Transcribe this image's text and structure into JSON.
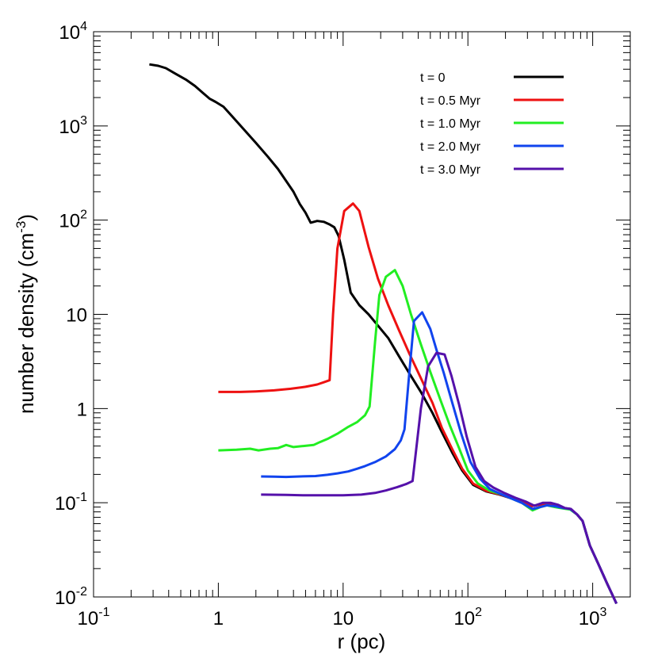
{
  "chart_data": {
    "type": "line",
    "xlabel": "r (pc)",
    "ylabel_main": "number density (cm",
    "ylabel_sup": "-3",
    "ylabel_close": ")",
    "xscale": "log",
    "yscale": "log",
    "xlim": [
      0.1,
      2000
    ],
    "ylim": [
      0.01,
      10000
    ],
    "grid": false,
    "legend_position": "top-right",
    "x_ticks": [
      {
        "value": 0.1,
        "base": "10",
        "sup": "-1"
      },
      {
        "value": 1,
        "base": "1",
        "sup": ""
      },
      {
        "value": 10,
        "base": "10",
        "sup": ""
      },
      {
        "value": 100,
        "base": "10",
        "sup": "2"
      },
      {
        "value": 1000,
        "base": "10",
        "sup": "3"
      }
    ],
    "y_ticks": [
      {
        "value": 0.01,
        "base": "10",
        "sup": "-2"
      },
      {
        "value": 0.1,
        "base": "10",
        "sup": "-1"
      },
      {
        "value": 1,
        "base": "1",
        "sup": ""
      },
      {
        "value": 10,
        "base": "10",
        "sup": ""
      },
      {
        "value": 100,
        "base": "10",
        "sup": "2"
      },
      {
        "value": 1000,
        "base": "10",
        "sup": "3"
      },
      {
        "value": 10000,
        "base": "10",
        "sup": "4"
      }
    ],
    "series": [
      {
        "name": "t = 0",
        "color": "#000000",
        "points": [
          [
            0.28,
            4500
          ],
          [
            0.33,
            4350
          ],
          [
            0.38,
            4100
          ],
          [
            0.45,
            3600
          ],
          [
            0.55,
            3100
          ],
          [
            0.65,
            2650
          ],
          [
            0.75,
            2250
          ],
          [
            0.85,
            1950
          ],
          [
            0.95,
            1800
          ],
          [
            1.1,
            1600
          ],
          [
            1.3,
            1250
          ],
          [
            1.6,
            920
          ],
          [
            2.0,
            660
          ],
          [
            2.5,
            470
          ],
          [
            3.0,
            350
          ],
          [
            3.5,
            260
          ],
          [
            4.0,
            200
          ],
          [
            4.5,
            148
          ],
          [
            5.0,
            120
          ],
          [
            5.5,
            94
          ],
          [
            6.2,
            98
          ],
          [
            7.0,
            96
          ],
          [
            7.8,
            90
          ],
          [
            8.5,
            84
          ],
          [
            9.2,
            68
          ],
          [
            10.2,
            38
          ],
          [
            11.5,
            17
          ],
          [
            13.5,
            12.5
          ],
          [
            16.0,
            10.0
          ],
          [
            19.0,
            7.6
          ],
          [
            23.0,
            5.6
          ],
          [
            28.0,
            3.6
          ],
          [
            34.0,
            2.35
          ],
          [
            42.0,
            1.5
          ],
          [
            52.0,
            0.9
          ],
          [
            62.0,
            0.56
          ],
          [
            75.0,
            0.34
          ],
          [
            90.0,
            0.22
          ],
          [
            110.0,
            0.155
          ],
          [
            140.0,
            0.132
          ],
          [
            180.0,
            0.122
          ],
          [
            220.0,
            0.112
          ],
          [
            270.0,
            0.102
          ],
          [
            320.0,
            0.092
          ],
          [
            370.0,
            0.095
          ],
          [
            430.0,
            0.097
          ],
          [
            500.0,
            0.095
          ],
          [
            580.0,
            0.088
          ],
          [
            660.0,
            0.086
          ],
          [
            750.0,
            0.075
          ],
          [
            830.0,
            0.064
          ],
          [
            950.0,
            0.035
          ],
          [
            1100.0,
            0.023
          ],
          [
            1300.0,
            0.014
          ],
          [
            1550.0,
            0.0085
          ]
        ]
      },
      {
        "name": "t = 0.5 Myr",
        "color": "#ee1111",
        "points": [
          [
            1.0,
            1.5
          ],
          [
            1.5,
            1.5
          ],
          [
            2.0,
            1.52
          ],
          [
            2.8,
            1.56
          ],
          [
            3.8,
            1.62
          ],
          [
            5.0,
            1.7
          ],
          [
            6.2,
            1.8
          ],
          [
            7.0,
            1.9
          ],
          [
            7.8,
            2.0
          ],
          [
            8.3,
            10.0
          ],
          [
            9.0,
            50.0
          ],
          [
            10.2,
            125.0
          ],
          [
            12.0,
            150.0
          ],
          [
            13.5,
            125.0
          ],
          [
            16.0,
            52.0
          ],
          [
            19.0,
            24.0
          ],
          [
            23.0,
            12.5
          ],
          [
            28.0,
            6.8
          ],
          [
            34.0,
            3.8
          ],
          [
            42.0,
            2.1
          ],
          [
            52.0,
            1.15
          ],
          [
            62.0,
            0.62
          ],
          [
            75.0,
            0.37
          ],
          [
            90.0,
            0.23
          ],
          [
            110.0,
            0.16
          ],
          [
            140.0,
            0.134
          ],
          [
            180.0,
            0.123
          ],
          [
            220.0,
            0.112
          ],
          [
            270.0,
            0.102
          ],
          [
            320.0,
            0.092
          ],
          [
            370.0,
            0.095
          ],
          [
            430.0,
            0.097
          ],
          [
            500.0,
            0.095
          ],
          [
            580.0,
            0.088
          ],
          [
            660.0,
            0.086
          ],
          [
            750.0,
            0.075
          ],
          [
            830.0,
            0.064
          ],
          [
            950.0,
            0.035
          ],
          [
            1100.0,
            0.023
          ],
          [
            1300.0,
            0.014
          ],
          [
            1550.0,
            0.0085
          ]
        ]
      },
      {
        "name": "t = 1.0 Myr",
        "color": "#22ee22",
        "points": [
          [
            1.0,
            0.36
          ],
          [
            1.4,
            0.365
          ],
          [
            1.8,
            0.375
          ],
          [
            2.1,
            0.36
          ],
          [
            2.6,
            0.375
          ],
          [
            3.0,
            0.38
          ],
          [
            3.5,
            0.41
          ],
          [
            4.0,
            0.39
          ],
          [
            4.8,
            0.4
          ],
          [
            5.8,
            0.41
          ],
          [
            6.5,
            0.44
          ],
          [
            7.6,
            0.48
          ],
          [
            9.0,
            0.54
          ],
          [
            11.0,
            0.64
          ],
          [
            13.0,
            0.72
          ],
          [
            15.0,
            0.85
          ],
          [
            16.3,
            1.05
          ],
          [
            18.0,
            5.0
          ],
          [
            19.5,
            16.0
          ],
          [
            22.0,
            25.0
          ],
          [
            26.0,
            29.5
          ],
          [
            30.0,
            20.0
          ],
          [
            35.0,
            10.0
          ],
          [
            42.0,
            4.8
          ],
          [
            50.0,
            2.45
          ],
          [
            60.0,
            1.25
          ],
          [
            72.0,
            0.65
          ],
          [
            85.0,
            0.38
          ],
          [
            100.0,
            0.22
          ],
          [
            120.0,
            0.16
          ],
          [
            150.0,
            0.134
          ],
          [
            185.0,
            0.123
          ],
          [
            220.0,
            0.112
          ],
          [
            270.0,
            0.1
          ],
          [
            330.0,
            0.083
          ],
          [
            380.0,
            0.09
          ],
          [
            430.0,
            0.094
          ],
          [
            500.0,
            0.09
          ],
          [
            580.0,
            0.087
          ],
          [
            660.0,
            0.085
          ],
          [
            750.0,
            0.075
          ],
          [
            830.0,
            0.064
          ],
          [
            950.0,
            0.035
          ],
          [
            1100.0,
            0.023
          ],
          [
            1300.0,
            0.014
          ],
          [
            1550.0,
            0.0085
          ]
        ]
      },
      {
        "name": "t = 2.0 Myr",
        "color": "#1144ee",
        "points": [
          [
            2.2,
            0.19
          ],
          [
            2.8,
            0.189
          ],
          [
            3.5,
            0.188
          ],
          [
            4.5,
            0.19
          ],
          [
            6.0,
            0.192
          ],
          [
            7.5,
            0.198
          ],
          [
            9.0,
            0.205
          ],
          [
            11.0,
            0.215
          ],
          [
            13.0,
            0.23
          ],
          [
            15.0,
            0.245
          ],
          [
            18.0,
            0.27
          ],
          [
            22.0,
            0.31
          ],
          [
            26.0,
            0.37
          ],
          [
            29.0,
            0.46
          ],
          [
            31.0,
            0.6
          ],
          [
            34.0,
            2.5
          ],
          [
            37.0,
            8.5
          ],
          [
            43.0,
            10.5
          ],
          [
            50.0,
            7.0
          ],
          [
            56.0,
            4.2
          ],
          [
            64.0,
            2.4
          ],
          [
            75.0,
            1.15
          ],
          [
            88.0,
            0.55
          ],
          [
            105.0,
            0.27
          ],
          [
            125.0,
            0.18
          ],
          [
            150.0,
            0.14
          ],
          [
            185.0,
            0.123
          ],
          [
            220.0,
            0.112
          ],
          [
            270.0,
            0.1
          ],
          [
            330.0,
            0.086
          ],
          [
            380.0,
            0.09
          ],
          [
            430.0,
            0.094
          ],
          [
            500.0,
            0.092
          ],
          [
            580.0,
            0.088
          ],
          [
            660.0,
            0.086
          ],
          [
            750.0,
            0.075
          ],
          [
            830.0,
            0.064
          ],
          [
            950.0,
            0.035
          ],
          [
            1100.0,
            0.023
          ],
          [
            1300.0,
            0.014
          ],
          [
            1550.0,
            0.0085
          ]
        ]
      },
      {
        "name": "t = 3.0 Myr",
        "color": "#5511aa",
        "points": [
          [
            2.2,
            0.122
          ],
          [
            3.5,
            0.121
          ],
          [
            5.0,
            0.12
          ],
          [
            7.0,
            0.12
          ],
          [
            10.0,
            0.12
          ],
          [
            14.0,
            0.122
          ],
          [
            18.0,
            0.127
          ],
          [
            22.0,
            0.135
          ],
          [
            27.0,
            0.146
          ],
          [
            32.0,
            0.158
          ],
          [
            36.0,
            0.17
          ],
          [
            42.0,
            1.0
          ],
          [
            48.0,
            2.8
          ],
          [
            56.0,
            3.9
          ],
          [
            65.0,
            3.75
          ],
          [
            74.0,
            2.2
          ],
          [
            85.0,
            1.1
          ],
          [
            98.0,
            0.5
          ],
          [
            115.0,
            0.24
          ],
          [
            135.0,
            0.17
          ],
          [
            160.0,
            0.145
          ],
          [
            195.0,
            0.127
          ],
          [
            240.0,
            0.113
          ],
          [
            290.0,
            0.103
          ],
          [
            340.0,
            0.093
          ],
          [
            400.0,
            0.1
          ],
          [
            460.0,
            0.1
          ],
          [
            530.0,
            0.095
          ],
          [
            600.0,
            0.088
          ],
          [
            670.0,
            0.086
          ],
          [
            750.0,
            0.075
          ],
          [
            830.0,
            0.064
          ],
          [
            950.0,
            0.035
          ],
          [
            1100.0,
            0.023
          ],
          [
            1300.0,
            0.014
          ],
          [
            1550.0,
            0.0085
          ]
        ]
      }
    ]
  }
}
